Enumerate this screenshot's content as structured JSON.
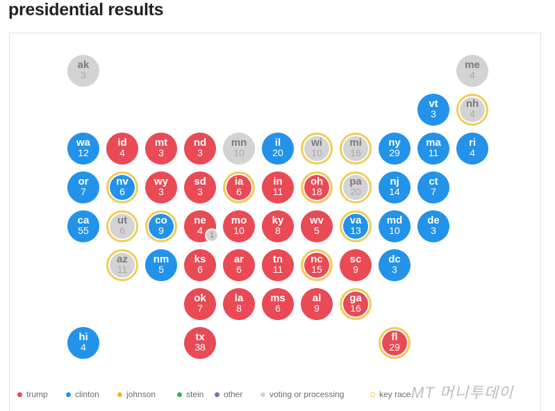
{
  "title": "presidential results",
  "colors": {
    "trump": "#e94a55",
    "clinton": "#2293e9",
    "johnson": "#f2b926",
    "stein": "#3cb34a",
    "other": "#8b64b8",
    "pending": "#d3d3d3",
    "key_race": "#f2cd57"
  },
  "legend": [
    {
      "label": "trump",
      "key": "trump"
    },
    {
      "label": "clinton",
      "key": "clinton"
    },
    {
      "label": "johnson",
      "key": "johnson"
    },
    {
      "label": "stein",
      "key": "stein"
    },
    {
      "label": "other",
      "key": "other"
    },
    {
      "label": "voting or processing",
      "key": "pending"
    },
    {
      "label": "key race",
      "key": "key_race"
    }
  ],
  "states": [
    {
      "abbr": "ak",
      "ev": "3",
      "row": 0,
      "col": 0,
      "status": "pending",
      "key": false
    },
    {
      "abbr": "me",
      "ev": "4",
      "row": 0,
      "col": 10,
      "status": "pending",
      "key": false
    },
    {
      "abbr": "vt",
      "ev": "3",
      "row": 1,
      "col": 9,
      "status": "clinton",
      "key": false
    },
    {
      "abbr": "nh",
      "ev": "4",
      "row": 1,
      "col": 10,
      "status": "pending",
      "key": true
    },
    {
      "abbr": "wa",
      "ev": "12",
      "row": 2,
      "col": 0,
      "status": "clinton",
      "key": false
    },
    {
      "abbr": "id",
      "ev": "4",
      "row": 2,
      "col": 1,
      "status": "trump",
      "key": false
    },
    {
      "abbr": "mt",
      "ev": "3",
      "row": 2,
      "col": 2,
      "status": "trump",
      "key": false
    },
    {
      "abbr": "nd",
      "ev": "3",
      "row": 2,
      "col": 3,
      "status": "trump",
      "key": false
    },
    {
      "abbr": "mn",
      "ev": "10",
      "row": 2,
      "col": 4,
      "status": "pending",
      "key": false
    },
    {
      "abbr": "il",
      "ev": "20",
      "row": 2,
      "col": 5,
      "status": "clinton",
      "key": false
    },
    {
      "abbr": "wi",
      "ev": "10",
      "row": 2,
      "col": 6,
      "status": "pending",
      "key": true
    },
    {
      "abbr": "mi",
      "ev": "16",
      "row": 2,
      "col": 7,
      "status": "pending",
      "key": true
    },
    {
      "abbr": "ny",
      "ev": "29",
      "row": 2,
      "col": 8,
      "status": "clinton",
      "key": false
    },
    {
      "abbr": "ma",
      "ev": "11",
      "row": 2,
      "col": 9,
      "status": "clinton",
      "key": false
    },
    {
      "abbr": "ri",
      "ev": "4",
      "row": 2,
      "col": 10,
      "status": "clinton",
      "key": false
    },
    {
      "abbr": "or",
      "ev": "7",
      "row": 3,
      "col": 0,
      "status": "clinton",
      "key": false
    },
    {
      "abbr": "nv",
      "ev": "6",
      "row": 3,
      "col": 1,
      "status": "clinton",
      "key": true
    },
    {
      "abbr": "wy",
      "ev": "3",
      "row": 3,
      "col": 2,
      "status": "trump",
      "key": false
    },
    {
      "abbr": "sd",
      "ev": "3",
      "row": 3,
      "col": 3,
      "status": "trump",
      "key": false
    },
    {
      "abbr": "ia",
      "ev": "6",
      "row": 3,
      "col": 4,
      "status": "trump",
      "key": true
    },
    {
      "abbr": "in",
      "ev": "11",
      "row": 3,
      "col": 5,
      "status": "trump",
      "key": false
    },
    {
      "abbr": "oh",
      "ev": "18",
      "row": 3,
      "col": 6,
      "status": "trump",
      "key": true
    },
    {
      "abbr": "pa",
      "ev": "20",
      "row": 3,
      "col": 7,
      "status": "pending",
      "key": true
    },
    {
      "abbr": "nj",
      "ev": "14",
      "row": 3,
      "col": 8,
      "status": "clinton",
      "key": false
    },
    {
      "abbr": "ct",
      "ev": "7",
      "row": 3,
      "col": 9,
      "status": "clinton",
      "key": false
    },
    {
      "abbr": "ca",
      "ev": "55",
      "row": 4,
      "col": 0,
      "status": "clinton",
      "key": false
    },
    {
      "abbr": "ut",
      "ev": "6",
      "row": 4,
      "col": 1,
      "status": "pending",
      "key": true
    },
    {
      "abbr": "co",
      "ev": "9",
      "row": 4,
      "col": 2,
      "status": "clinton",
      "key": true
    },
    {
      "abbr": "ne",
      "ev": "4",
      "row": 4,
      "col": 3,
      "status": "trump",
      "key": false
    },
    {
      "abbr": "mo",
      "ev": "10",
      "row": 4,
      "col": 4,
      "status": "trump",
      "key": false
    },
    {
      "abbr": "ky",
      "ev": "8",
      "row": 4,
      "col": 5,
      "status": "trump",
      "key": false
    },
    {
      "abbr": "wv",
      "ev": "5",
      "row": 4,
      "col": 6,
      "status": "trump",
      "key": false
    },
    {
      "abbr": "va",
      "ev": "13",
      "row": 4,
      "col": 7,
      "status": "clinton",
      "key": true
    },
    {
      "abbr": "md",
      "ev": "10",
      "row": 4,
      "col": 8,
      "status": "clinton",
      "key": false
    },
    {
      "abbr": "de",
      "ev": "3",
      "row": 4,
      "col": 9,
      "status": "clinton",
      "key": false
    },
    {
      "abbr": "az",
      "ev": "11",
      "row": 5,
      "col": 1,
      "status": "pending",
      "key": true
    },
    {
      "abbr": "nm",
      "ev": "5",
      "row": 5,
      "col": 2,
      "status": "clinton",
      "key": false
    },
    {
      "abbr": "ks",
      "ev": "6",
      "row": 5,
      "col": 3,
      "status": "trump",
      "key": false
    },
    {
      "abbr": "ar",
      "ev": "6",
      "row": 5,
      "col": 4,
      "status": "trump",
      "key": false
    },
    {
      "abbr": "tn",
      "ev": "11",
      "row": 5,
      "col": 5,
      "status": "trump",
      "key": false
    },
    {
      "abbr": "nc",
      "ev": "15",
      "row": 5,
      "col": 6,
      "status": "trump",
      "key": true
    },
    {
      "abbr": "sc",
      "ev": "9",
      "row": 5,
      "col": 7,
      "status": "trump",
      "key": false
    },
    {
      "abbr": "dc",
      "ev": "3",
      "row": 5,
      "col": 8,
      "status": "clinton",
      "key": false
    },
    {
      "abbr": "ok",
      "ev": "7",
      "row": 6,
      "col": 3,
      "status": "trump",
      "key": false
    },
    {
      "abbr": "la",
      "ev": "8",
      "row": 6,
      "col": 4,
      "status": "trump",
      "key": false
    },
    {
      "abbr": "ms",
      "ev": "6",
      "row": 6,
      "col": 5,
      "status": "trump",
      "key": false
    },
    {
      "abbr": "al",
      "ev": "9",
      "row": 6,
      "col": 6,
      "status": "trump",
      "key": false
    },
    {
      "abbr": "ga",
      "ev": "16",
      "row": 6,
      "col": 7,
      "status": "trump",
      "key": true
    },
    {
      "abbr": "hi",
      "ev": "4",
      "row": 7,
      "col": 0,
      "status": "clinton",
      "key": false
    },
    {
      "abbr": "tx",
      "ev": "38",
      "row": 7,
      "col": 3,
      "status": "trump",
      "key": false
    },
    {
      "abbr": "fl",
      "ev": "29",
      "row": 7,
      "col": 8,
      "status": "trump",
      "key": true
    }
  ],
  "ne_split": {
    "label": "1",
    "status": "pending"
  },
  "watermark": "MT 머니투데이"
}
